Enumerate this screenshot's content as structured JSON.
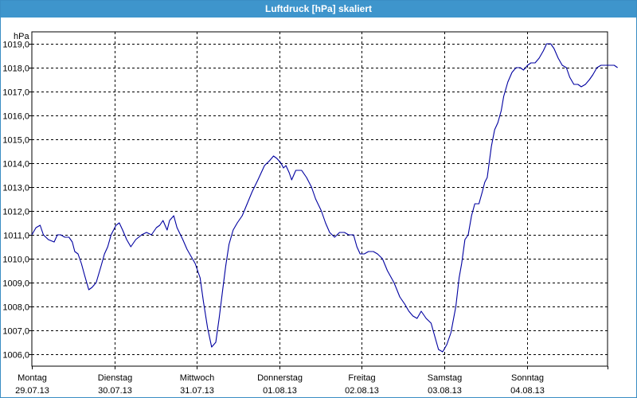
{
  "window": {
    "title": "Luftdruck [hPa] skaliert"
  },
  "chart_data": {
    "type": "line",
    "title": "Luftdruck [hPa] skaliert",
    "ylabel": "hPa",
    "xlabel": "",
    "ylim": [
      1005.5,
      1019.5
    ],
    "xlim": [
      0,
      7.14
    ],
    "grid": true,
    "legend": "none",
    "y_ticks": [
      "1006,0",
      "1007,0",
      "1008,0",
      "1009,0",
      "1010,0",
      "1011,0",
      "1012,0",
      "1013,0",
      "1014,0",
      "1015,0",
      "1016,0",
      "1017,0",
      "1018,0",
      "1019,0"
    ],
    "x_ticks": [
      {
        "day": "Montag",
        "date": "29.07.13"
      },
      {
        "day": "Dienstag",
        "date": "30.07.13"
      },
      {
        "day": "Mittwoch",
        "date": "31.07.13"
      },
      {
        "day": "Donnerstag",
        "date": "01.08.13"
      },
      {
        "day": "Freitag",
        "date": "02.08.13"
      },
      {
        "day": "Samstag",
        "date": "03.08.13"
      },
      {
        "day": "Sonntag",
        "date": "04.08.13"
      }
    ],
    "series": [
      {
        "color": "#0000a0",
        "x": [
          0.0,
          0.05,
          0.1,
          0.14,
          0.2,
          0.27,
          0.31,
          0.35,
          0.4,
          0.45,
          0.49,
          0.52,
          0.56,
          0.6,
          0.64,
          0.69,
          0.73,
          0.78,
          0.84,
          0.88,
          0.92,
          0.96,
          1.02,
          1.06,
          1.1,
          1.15,
          1.2,
          1.26,
          1.33,
          1.39,
          1.45,
          1.51,
          1.55,
          1.59,
          1.64,
          1.67,
          1.72,
          1.76,
          1.83,
          1.88,
          1.93,
          1.98,
          2.04,
          2.08,
          2.13,
          2.18,
          2.23,
          2.27,
          2.31,
          2.35,
          2.39,
          2.44,
          2.49,
          2.55,
          2.61,
          2.67,
          2.74,
          2.82,
          2.88,
          2.93,
          2.97,
          3.02,
          3.05,
          3.08,
          3.12,
          3.15,
          3.2,
          3.27,
          3.33,
          3.39,
          3.44,
          3.51,
          3.56,
          3.61,
          3.67,
          3.73,
          3.79,
          3.84,
          3.9,
          3.94,
          3.98,
          4.03,
          4.08,
          4.14,
          4.19,
          4.25,
          4.31,
          4.39,
          4.46,
          4.52,
          4.57,
          4.62,
          4.67,
          4.72,
          4.78,
          4.84,
          4.88,
          4.93,
          4.98,
          5.03,
          5.08,
          5.14,
          5.18,
          5.21,
          5.25,
          5.29,
          5.33,
          5.37,
          5.42,
          5.46,
          5.49,
          5.52,
          5.57,
          5.61,
          5.65,
          5.69,
          5.72,
          5.77,
          5.82,
          5.87,
          5.92,
          5.96,
          6.01,
          6.05,
          6.1,
          6.15,
          6.2,
          6.24,
          6.29,
          6.33,
          6.38,
          6.43,
          6.48,
          6.52,
          6.57,
          6.62,
          6.66,
          6.71,
          6.76,
          6.8,
          6.85,
          6.9,
          6.95,
          7.0,
          7.06,
          7.1
        ],
        "y": [
          1011.0,
          1011.3,
          1011.4,
          1011.0,
          1010.8,
          1010.7,
          1011.0,
          1011.0,
          1010.9,
          1010.9,
          1010.7,
          1010.3,
          1010.2,
          1009.8,
          1009.3,
          1008.7,
          1008.8,
          1009.0,
          1009.7,
          1010.2,
          1010.5,
          1011.0,
          1011.4,
          1011.5,
          1011.2,
          1010.8,
          1010.5,
          1010.8,
          1011.0,
          1011.1,
          1011.0,
          1011.3,
          1011.4,
          1011.6,
          1011.2,
          1011.6,
          1011.8,
          1011.3,
          1010.8,
          1010.4,
          1010.1,
          1009.8,
          1009.2,
          1008.2,
          1007.1,
          1006.3,
          1006.5,
          1007.5,
          1008.6,
          1009.7,
          1010.6,
          1011.2,
          1011.5,
          1011.8,
          1012.3,
          1012.8,
          1013.3,
          1013.9,
          1014.1,
          1014.3,
          1014.2,
          1014.0,
          1013.8,
          1013.9,
          1013.6,
          1013.3,
          1013.7,
          1013.7,
          1013.4,
          1013.0,
          1012.5,
          1012.0,
          1011.5,
          1011.1,
          1010.9,
          1011.1,
          1011.1,
          1011.0,
          1011.0,
          1010.5,
          1010.2,
          1010.2,
          1010.3,
          1010.3,
          1010.2,
          1010.0,
          1009.5,
          1009.0,
          1008.4,
          1008.1,
          1007.8,
          1007.6,
          1007.5,
          1007.8,
          1007.5,
          1007.3,
          1006.8,
          1006.2,
          1006.1,
          1006.4,
          1006.9,
          1008.0,
          1009.2,
          1009.8,
          1010.8,
          1011.0,
          1011.8,
          1012.3,
          1012.3,
          1012.8,
          1013.2,
          1013.4,
          1014.7,
          1015.4,
          1015.7,
          1016.2,
          1016.8,
          1017.4,
          1017.8,
          1018.0,
          1018.0,
          1017.9,
          1018.1,
          1018.2,
          1018.2,
          1018.4,
          1018.7,
          1019.0,
          1019.0,
          1018.8,
          1018.4,
          1018.1,
          1018.0,
          1017.6,
          1017.3,
          1017.3,
          1017.2,
          1017.3,
          1017.5,
          1017.7,
          1018.0,
          1018.1,
          1018.1,
          1018.1,
          1018.1,
          1018.0
        ]
      }
    ]
  }
}
